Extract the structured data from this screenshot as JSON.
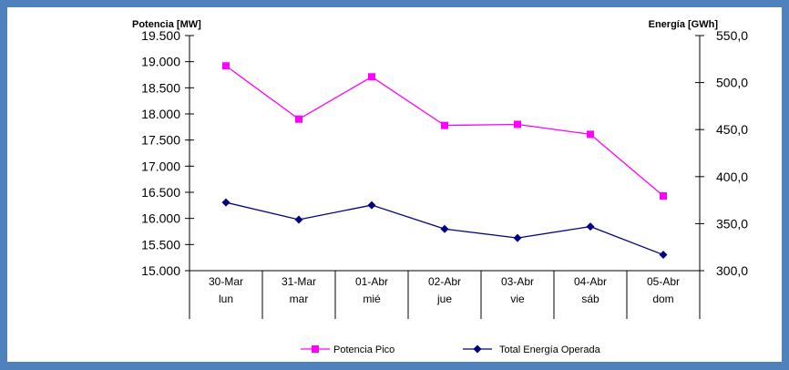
{
  "chart_data": {
    "type": "line",
    "categories": [
      {
        "date": "30-Mar",
        "day": "lun"
      },
      {
        "date": "31-Mar",
        "day": "mar"
      },
      {
        "date": "01-Abr",
        "day": "mié"
      },
      {
        "date": "02-Abr",
        "day": "jue"
      },
      {
        "date": "03-Abr",
        "day": "vie"
      },
      {
        "date": "04-Abr",
        "day": "sáb"
      },
      {
        "date": "05-Abr",
        "day": "dom"
      }
    ],
    "left_axis": {
      "label": "Potencia [MW]",
      "min": 15000,
      "max": 19500,
      "step": 500,
      "ticks": [
        "15.000",
        "15.500",
        "16.000",
        "16.500",
        "17.000",
        "17.500",
        "18.000",
        "18.500",
        "19.000",
        "19.500"
      ]
    },
    "right_axis": {
      "label": "Energía [GWh]",
      "min": 300,
      "max": 550,
      "step": 50,
      "ticks": [
        "300,0",
        "350,0",
        "400,0",
        "450,0",
        "500,0",
        "550,0"
      ]
    },
    "series": [
      {
        "name": "Potencia Pico",
        "axis": "left",
        "color": "#ff00ff",
        "marker": "square",
        "values": [
          18920,
          17900,
          18710,
          17780,
          17800,
          17610,
          16430
        ]
      },
      {
        "name": "Total Energía Operada",
        "axis": "right",
        "color": "#000080",
        "marker": "diamond",
        "values": [
          372.5,
          354.3,
          369.7,
          344.3,
          334.8,
          346.9,
          316.9
        ]
      }
    ],
    "legend_position": "bottom"
  }
}
